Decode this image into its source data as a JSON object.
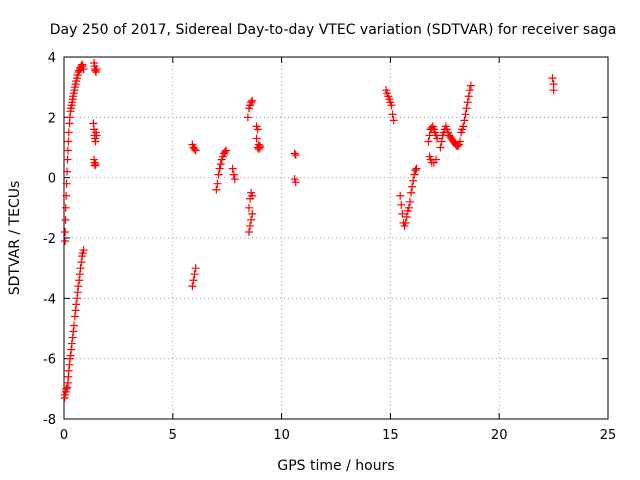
{
  "chart_data": {
    "type": "scatter",
    "title": "Day 250 of 2017, Sidereal Day-to-day VTEC variation (SDTVAR) for receiver saga",
    "xlabel": "GPS time / hours",
    "ylabel": "SDTVAR / TECUs",
    "xlim": [
      0,
      25
    ],
    "ylim": [
      -8,
      4
    ],
    "xticks": [
      0,
      5,
      10,
      15,
      20,
      25
    ],
    "xtick_labels": [
      "0",
      "5",
      "10",
      "15",
      "20",
      "25"
    ],
    "yticks": [
      -8,
      -6,
      -4,
      -2,
      0,
      2,
      4
    ],
    "ytick_labels": [
      "-8",
      "-6",
      "-4",
      "-2",
      "0",
      "2",
      "4"
    ],
    "grid": true,
    "marker": "+",
    "color": "#ff0000",
    "series": [
      {
        "name": "SDTVAR",
        "x": [
          0.05,
          0.05,
          0.07,
          0.08,
          0.1,
          0.12,
          0.14,
          0.16,
          0.18,
          0.2,
          0.22,
          0.25,
          0.27,
          0.3,
          0.32,
          0.35,
          0.38,
          0.4,
          0.42,
          0.45,
          0.48,
          0.5,
          0.53,
          0.56,
          0.6,
          0.63,
          0.66,
          0.7,
          0.73,
          0.76,
          0.8,
          0.83,
          0.86,
          0.9,
          0.03,
          0.05,
          0.08,
          0.1,
          0.12,
          0.15,
          0.18,
          0.2,
          0.22,
          0.25,
          0.28,
          0.3,
          0.33,
          0.36,
          0.4,
          0.43,
          0.46,
          0.5,
          0.53,
          0.56,
          0.6,
          0.63,
          0.66,
          0.7,
          0.73,
          0.76,
          0.8,
          0.83,
          0.86,
          0.9,
          1.38,
          1.4,
          1.42,
          1.45,
          1.47,
          1.5,
          1.35,
          1.38,
          1.4,
          1.42,
          1.45,
          1.47,
          1.5,
          1.38,
          1.4,
          1.42,
          1.45,
          5.9,
          5.95,
          6.0,
          6.05,
          5.9,
          5.95,
          6.0,
          6.05,
          7.0,
          7.05,
          7.1,
          7.15,
          7.2,
          7.25,
          7.3,
          7.35,
          7.4,
          7.45,
          7.75,
          7.8,
          7.85,
          8.45,
          8.5,
          8.55,
          8.6,
          8.65,
          8.5,
          8.55,
          8.6,
          8.65,
          8.5,
          8.55,
          8.6,
          8.65,
          8.85,
          8.9,
          8.95,
          9.0,
          8.85,
          8.9,
          8.95,
          9.0,
          10.6,
          10.65,
          10.6,
          10.65,
          14.8,
          14.85,
          14.9,
          14.95,
          15.0,
          15.05,
          15.1,
          15.15,
          15.45,
          15.5,
          15.55,
          15.6,
          15.65,
          15.7,
          15.75,
          15.8,
          15.85,
          15.9,
          15.95,
          16.0,
          16.05,
          16.1,
          16.15,
          16.2,
          16.75,
          16.8,
          16.85,
          16.9,
          16.95,
          17.0,
          17.05,
          17.1,
          17.15,
          16.8,
          16.85,
          16.9,
          17.0,
          17.1,
          17.3,
          17.35,
          17.4,
          17.45,
          17.5,
          17.55,
          17.6,
          17.65,
          17.7,
          17.75,
          17.8,
          17.85,
          17.9,
          17.95,
          18.0,
          18.05,
          18.1,
          18.15,
          18.2,
          18.25,
          18.3,
          18.35,
          18.4,
          18.45,
          18.5,
          18.55,
          18.6,
          18.65,
          18.7,
          22.45,
          22.5,
          22.5
        ],
        "y": [
          -2.1,
          -1.8,
          -1.4,
          -1.0,
          -0.6,
          -0.2,
          0.2,
          0.6,
          0.9,
          1.2,
          1.5,
          1.8,
          2.0,
          2.2,
          2.3,
          2.4,
          2.5,
          2.6,
          2.7,
          2.8,
          2.9,
          3.0,
          3.1,
          3.2,
          3.3,
          3.4,
          3.5,
          3.55,
          3.6,
          3.65,
          3.7,
          3.75,
          3.7,
          3.6,
          -7.3,
          -7.2,
          -7.1,
          -7.0,
          -7.0,
          -6.95,
          -6.8,
          -6.6,
          -6.4,
          -6.2,
          -6.0,
          -5.9,
          -5.7,
          -5.5,
          -5.3,
          -5.1,
          -4.9,
          -4.6,
          -4.4,
          -4.2,
          -4.0,
          -3.8,
          -3.6,
          -3.4,
          -3.2,
          -3.0,
          -2.8,
          -2.6,
          -2.5,
          -2.4,
          3.8,
          3.7,
          3.6,
          3.55,
          3.5,
          3.6,
          1.8,
          1.6,
          1.4,
          1.3,
          1.2,
          1.5,
          1.4,
          0.6,
          0.5,
          0.4,
          0.45,
          1.1,
          1.0,
          0.95,
          0.9,
          -3.6,
          -3.4,
          -3.2,
          -3.0,
          -0.4,
          -0.2,
          0.1,
          0.3,
          0.45,
          0.6,
          0.7,
          0.8,
          0.85,
          0.9,
          0.3,
          0.1,
          -0.05,
          2.0,
          2.3,
          2.4,
          2.5,
          2.55,
          -1.8,
          -1.6,
          -1.4,
          -1.2,
          -1.0,
          -0.7,
          -0.5,
          -0.6,
          1.7,
          1.6,
          1.1,
          1.0,
          1.3,
          1.0,
          0.95,
          1.05,
          0.8,
          0.75,
          -0.05,
          -0.15,
          2.9,
          2.8,
          2.7,
          2.6,
          2.5,
          2.4,
          2.1,
          1.9,
          -0.6,
          -0.9,
          -1.2,
          -1.5,
          -1.6,
          -1.5,
          -1.3,
          -1.1,
          -1.0,
          -0.8,
          -0.5,
          -0.3,
          -0.1,
          0.1,
          0.25,
          0.3,
          1.2,
          1.4,
          1.6,
          1.65,
          1.7,
          1.6,
          1.5,
          1.4,
          1.3,
          0.7,
          0.6,
          0.5,
          0.5,
          0.6,
          1.0,
          1.2,
          1.4,
          1.5,
          1.6,
          1.7,
          1.6,
          1.5,
          1.4,
          1.35,
          1.3,
          1.25,
          1.2,
          1.15,
          1.1,
          1.05,
          1.05,
          1.1,
          1.2,
          1.5,
          1.6,
          1.7,
          1.9,
          2.1,
          2.3,
          2.5,
          2.7,
          2.9,
          3.05,
          3.3,
          3.1,
          2.9
        ]
      }
    ]
  }
}
